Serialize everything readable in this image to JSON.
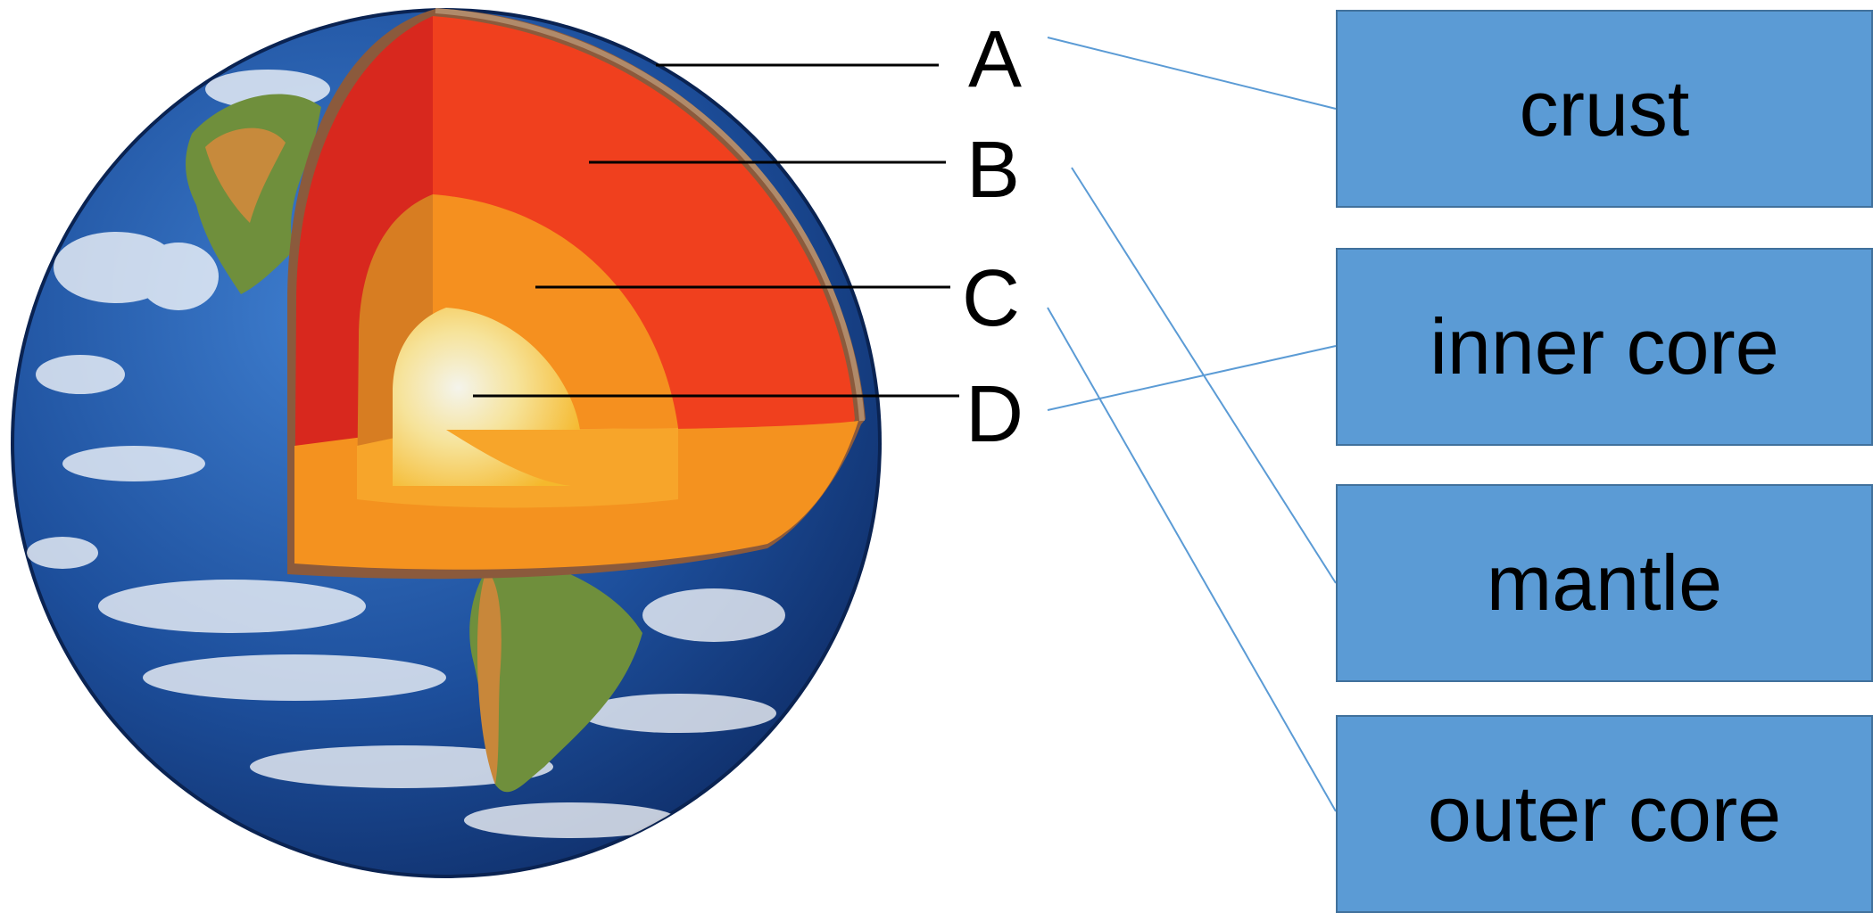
{
  "letters": [
    "A",
    "B",
    "C",
    "D"
  ],
  "terms": [
    "crust",
    "inner core",
    "mantle",
    "outer core"
  ],
  "colors": {
    "box_fill": "#5b9bd5",
    "box_border": "#41719c",
    "connector": "#5b9bd5",
    "ocean": "#1d4f9c",
    "crust": "#8b5a3c",
    "mantle": "#f0401e",
    "outer_core": "#f5901f",
    "inner_core": "#f8e8a0"
  },
  "icons": {
    "earth": "earth-cutaway-illustration"
  }
}
